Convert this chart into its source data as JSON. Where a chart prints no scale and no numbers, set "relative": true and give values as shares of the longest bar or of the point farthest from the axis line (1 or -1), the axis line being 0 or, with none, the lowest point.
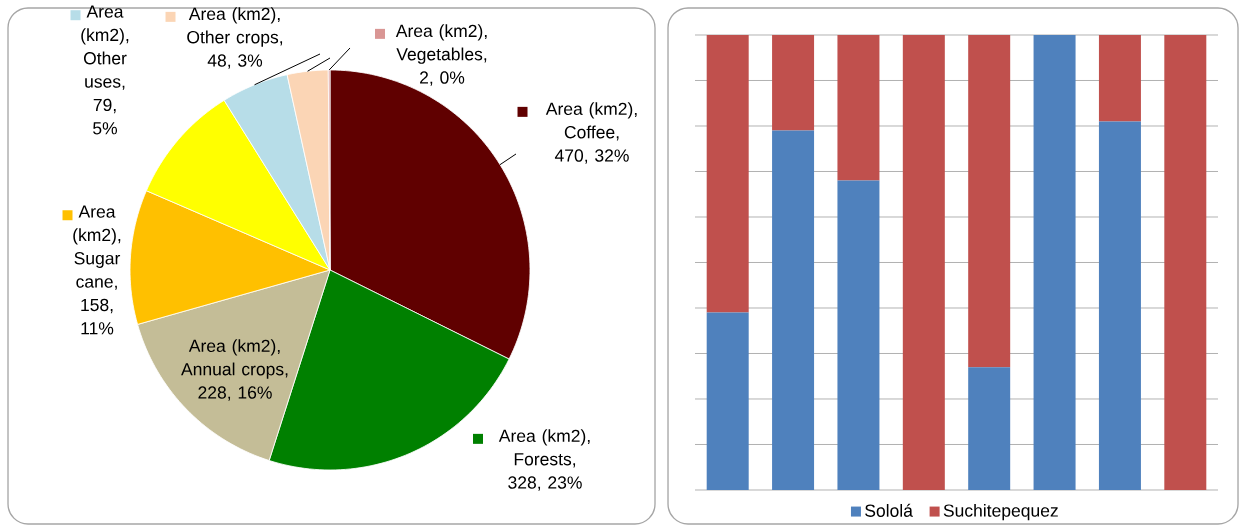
{
  "chart_data": [
    {
      "type": "pie",
      "legend": "top",
      "categories": [
        "Area (km2), Coffee, 470, 32%",
        "Area (km2), Forests, 328, 23%",
        "Area (km2), Annual crops, 228, 16%",
        "Area (km2), Sugar cane, 158, 11%",
        null,
        "Area (km2), Other uses, 79, 5%",
        "Area (km2), Other crops, 48, 3%",
        "Area (km2), Vegetables, 2, 0%"
      ],
      "colors": [
        "#600000",
        "#008000",
        "#c4bd97",
        "#ffc000",
        "#ffff00",
        "#b7dde8",
        "#fbd5b5",
        "#d99694"
      ],
      "values": [
        470,
        328,
        228,
        158,
        140,
        79,
        48,
        2
      ]
    },
    {
      "type": "bar",
      "stacked": true,
      "relative": true,
      "categories": [
        null,
        null,
        null,
        null,
        null,
        null,
        null,
        null
      ],
      "series": [
        {
          "name": "Sololá",
          "color": "#4f81bd",
          "values": [
            0.39,
            0.79,
            0.68,
            0,
            0.27,
            1,
            0.81,
            0
          ]
        },
        {
          "name": "Suchitepequez",
          "color": "#c0504d",
          "values": [
            0.61,
            0.21,
            0.32,
            1,
            0.73,
            0,
            0.19,
            1
          ]
        }
      ],
      "grid": "y",
      "legend": "bottom"
    }
  ]
}
